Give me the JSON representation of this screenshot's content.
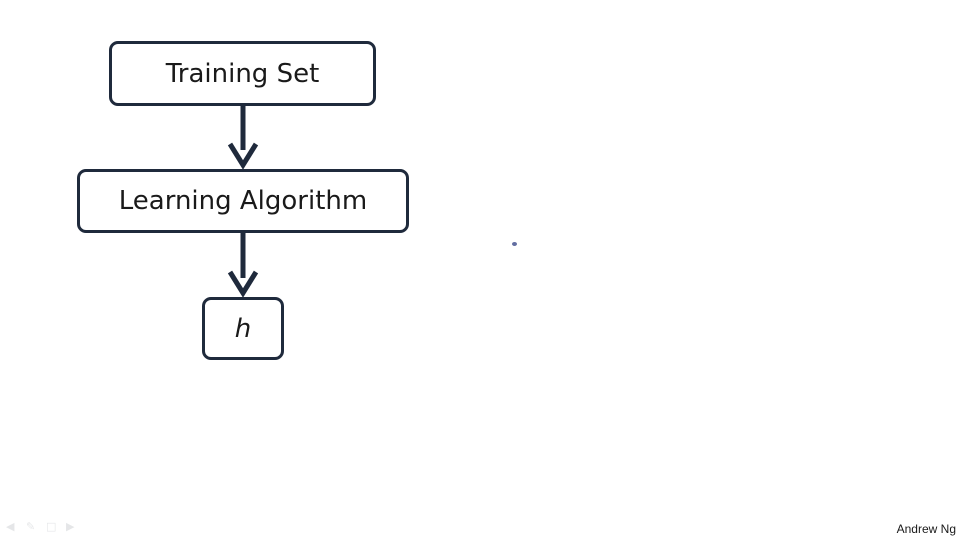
{
  "diagram": {
    "boxes": {
      "training_set": "Training Set",
      "learning_algorithm": "Learning Algorithm",
      "hypothesis": "h"
    },
    "arrows": [
      "training-set-to-learning-algorithm",
      "learning-algorithm-to-h"
    ]
  },
  "footer": {
    "author": "Andrew Ng"
  },
  "colors": {
    "box_border": "#1f2a3c",
    "arrow": "#1f2a3c",
    "text": "#1a1a1a"
  }
}
